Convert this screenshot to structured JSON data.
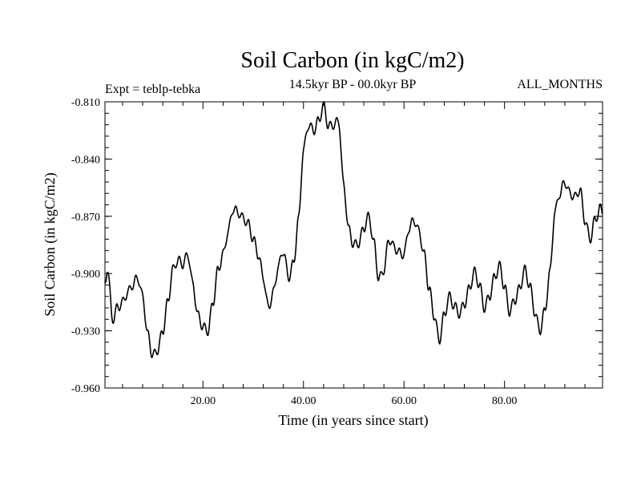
{
  "chart_data": {
    "type": "line",
    "title": "Soil Carbon (in kgC/m2)",
    "subtitle": "14.5kyr BP - 00.0kyr BP",
    "left_label": "Expt = teblp-tebka",
    "right_label": "ALL_MONTHS",
    "xlabel": "Time (in years since start)",
    "ylabel": "Soil Carbon (in kgC/m2)",
    "xlim": [
      0.5,
      99.5
    ],
    "ylim": [
      -0.96,
      -0.81
    ],
    "x_ticks": [
      20,
      40,
      60,
      80
    ],
    "x_tick_labels": [
      "20.00",
      "40.00",
      "60.00",
      "80.00"
    ],
    "y_ticks": [
      -0.81,
      -0.84,
      -0.87,
      -0.9,
      -0.93,
      -0.96
    ],
    "y_tick_labels": [
      "-0.810",
      "-0.840",
      "-0.870",
      "-0.900",
      "-0.930",
      "-0.960"
    ],
    "grid": false,
    "legend": "none",
    "series": [
      {
        "name": "Soil Carbon",
        "color": "#000000",
        "x": [
          0.5,
          1,
          2,
          3,
          4,
          5,
          6,
          7,
          8,
          9,
          10,
          11,
          12,
          13,
          14,
          15,
          16,
          17,
          18,
          19,
          20,
          21,
          22,
          23,
          24,
          25,
          26,
          27,
          28,
          29,
          30,
          31,
          32,
          33,
          34,
          35,
          36,
          37,
          38,
          39,
          40,
          41,
          42,
          43,
          44,
          45,
          46,
          47,
          48,
          49,
          50,
          51,
          52,
          53,
          54,
          55,
          56,
          57,
          58,
          59,
          60,
          61,
          62,
          63,
          64,
          65,
          66,
          67,
          68,
          69,
          70,
          71,
          72,
          73,
          74,
          75,
          76,
          77,
          78,
          79,
          80,
          81,
          82,
          83,
          84,
          85,
          86,
          87,
          88,
          89,
          90,
          91,
          92,
          93,
          94,
          95,
          96,
          97,
          98,
          99,
          99.5
        ],
        "y": [
          -0.906,
          -0.897,
          -0.924,
          -0.918,
          -0.915,
          -0.91,
          -0.906,
          -0.902,
          -0.912,
          -0.932,
          -0.943,
          -0.94,
          -0.93,
          -0.915,
          -0.898,
          -0.893,
          -0.895,
          -0.89,
          -0.906,
          -0.922,
          -0.928,
          -0.93,
          -0.915,
          -0.898,
          -0.89,
          -0.878,
          -0.866,
          -0.868,
          -0.871,
          -0.874,
          -0.882,
          -0.89,
          -0.902,
          -0.918,
          -0.91,
          -0.896,
          -0.888,
          -0.902,
          -0.895,
          -0.872,
          -0.835,
          -0.822,
          -0.825,
          -0.82,
          -0.812,
          -0.823,
          -0.822,
          -0.82,
          -0.854,
          -0.877,
          -0.885,
          -0.884,
          -0.876,
          -0.87,
          -0.884,
          -0.903,
          -0.898,
          -0.882,
          -0.886,
          -0.889,
          -0.89,
          -0.876,
          -0.872,
          -0.878,
          -0.89,
          -0.908,
          -0.922,
          -0.935,
          -0.922,
          -0.912,
          -0.917,
          -0.921,
          -0.916,
          -0.908,
          -0.899,
          -0.906,
          -0.918,
          -0.912,
          -0.902,
          -0.896,
          -0.907,
          -0.92,
          -0.914,
          -0.908,
          -0.898,
          -0.906,
          -0.92,
          -0.93,
          -0.92,
          -0.9,
          -0.868,
          -0.858,
          -0.852,
          -0.858,
          -0.86,
          -0.856,
          -0.872,
          -0.882,
          -0.872,
          -0.866,
          -0.868
        ]
      }
    ]
  }
}
